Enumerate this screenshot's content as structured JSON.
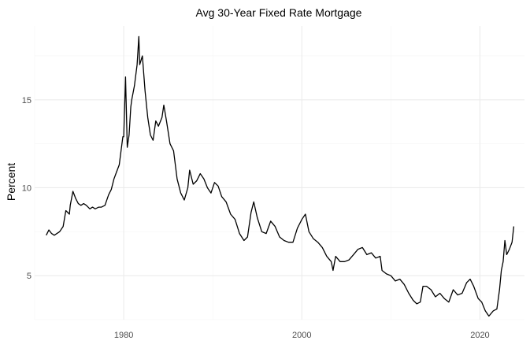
{
  "chart_data": {
    "type": "line",
    "title": "Avg 30-Year Fixed Rate Mortgage",
    "xlabel": "",
    "ylabel": "Percent",
    "xlim": [
      1970,
      2025
    ],
    "ylim": [
      2.5,
      19.2
    ],
    "x_ticks": [
      1980,
      2000,
      2020
    ],
    "x_tick_labels": [
      "1980",
      "2000",
      "2020"
    ],
    "y_ticks": [
      5,
      10,
      15
    ],
    "y_tick_labels": [
      "5",
      "10",
      "15"
    ],
    "grid": true,
    "legend": "none",
    "line_color": "#000000",
    "series": [
      {
        "x": [
          1971.3,
          1971.6,
          1971.9,
          1972.2,
          1972.5,
          1972.8,
          1973.2,
          1973.5,
          1973.9,
          1974.0,
          1974.3,
          1974.6,
          1974.9,
          1975.2,
          1975.5,
          1975.8,
          1976.2,
          1976.5,
          1976.8,
          1977.2,
          1977.5,
          1977.9,
          1978.3,
          1978.6,
          1978.9,
          1979.2,
          1979.5,
          1979.9,
          1980.0,
          1980.2,
          1980.4,
          1980.6,
          1980.8,
          1980.9,
          1981.2,
          1981.5,
          1981.7,
          1981.8,
          1982.1,
          1982.4,
          1982.7,
          1983.0,
          1983.3,
          1983.6,
          1983.9,
          1984.3,
          1984.5,
          1984.8,
          1985.2,
          1985.6,
          1986.0,
          1986.4,
          1986.8,
          1987.2,
          1987.4,
          1987.8,
          1988.2,
          1988.6,
          1989.0,
          1989.4,
          1989.8,
          1990.2,
          1990.6,
          1991.0,
          1991.5,
          1992.0,
          1992.5,
          1993.0,
          1993.5,
          1993.9,
          1994.3,
          1994.6,
          1995.0,
          1995.5,
          1996.0,
          1996.5,
          1997.0,
          1997.5,
          1998.0,
          1998.5,
          1999.0,
          1999.5,
          2000.0,
          2000.4,
          2000.8,
          2001.3,
          2001.8,
          2002.3,
          2002.8,
          2003.3,
          2003.5,
          2003.8,
          2004.3,
          2004.8,
          2005.3,
          2005.8,
          2006.3,
          2006.8,
          2007.3,
          2007.8,
          2008.3,
          2008.8,
          2009.0,
          2009.5,
          2010.0,
          2010.5,
          2011.0,
          2011.5,
          2012.0,
          2012.5,
          2012.9,
          2013.3,
          2013.6,
          2014.0,
          2014.5,
          2015.0,
          2015.5,
          2016.0,
          2016.5,
          2017.0,
          2017.5,
          2018.0,
          2018.5,
          2018.9,
          2019.3,
          2019.8,
          2020.2,
          2020.6,
          2021.0,
          2021.5,
          2021.9,
          2022.2,
          2022.4,
          2022.6,
          2022.8,
          2023.0,
          2023.3,
          2023.6,
          2023.8
        ],
        "values": [
          7.3,
          7.6,
          7.4,
          7.3,
          7.4,
          7.5,
          7.8,
          8.7,
          8.5,
          9.0,
          9.8,
          9.4,
          9.1,
          9.0,
          9.1,
          9.0,
          8.8,
          8.9,
          8.8,
          8.9,
          8.9,
          9.0,
          9.6,
          9.9,
          10.5,
          10.9,
          11.3,
          12.9,
          12.9,
          16.3,
          12.3,
          13.0,
          14.6,
          15.0,
          15.8,
          17.0,
          18.6,
          17.0,
          17.5,
          15.5,
          14.0,
          13.0,
          12.7,
          13.8,
          13.5,
          14.0,
          14.7,
          13.8,
          12.5,
          12.1,
          10.5,
          9.7,
          9.3,
          10.0,
          11.0,
          10.2,
          10.4,
          10.8,
          10.5,
          10.0,
          9.7,
          10.3,
          10.1,
          9.5,
          9.2,
          8.5,
          8.2,
          7.4,
          7.0,
          7.2,
          8.6,
          9.2,
          8.3,
          7.5,
          7.4,
          8.1,
          7.8,
          7.2,
          7.0,
          6.9,
          6.9,
          7.7,
          8.2,
          8.5,
          7.5,
          7.1,
          6.9,
          6.6,
          6.1,
          5.8,
          5.3,
          6.1,
          5.8,
          5.8,
          5.9,
          6.2,
          6.5,
          6.6,
          6.2,
          6.3,
          6.0,
          6.1,
          5.3,
          5.1,
          5.0,
          4.7,
          4.8,
          4.5,
          4.0,
          3.6,
          3.4,
          3.5,
          4.4,
          4.4,
          4.2,
          3.8,
          4.0,
          3.7,
          3.5,
          4.2,
          3.9,
          4.0,
          4.6,
          4.8,
          4.4,
          3.7,
          3.5,
          3.0,
          2.7,
          3.0,
          3.1,
          4.2,
          5.3,
          5.8,
          7.0,
          6.2,
          6.5,
          6.9,
          7.8
        ]
      }
    ]
  }
}
